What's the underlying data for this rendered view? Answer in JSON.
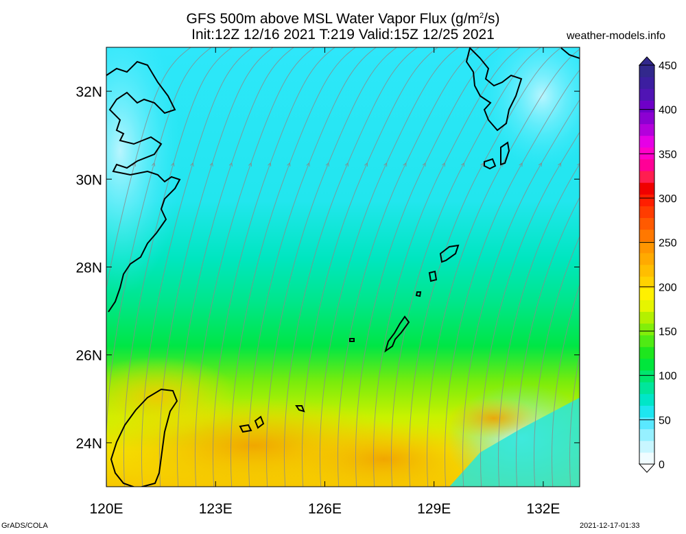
{
  "title_line1_main": "GFS 500m above MSL Water Vapor Flux (g/m",
  "title_line1_sup": "2",
  "title_line1_tail": "/s)",
  "title_line2": "Init:12Z 12/16 2021 T:219 Valid:15Z 12/25 2021",
  "site": "weather-models.info",
  "footer_left": "GrADS/COLA",
  "footer_right": "2021-12-17-01:33",
  "axes": {
    "lon_ticks": [
      {
        "value": 120,
        "label": "120E"
      },
      {
        "value": 123,
        "label": "123E"
      },
      {
        "value": 126,
        "label": "126E"
      },
      {
        "value": 129,
        "label": "129E"
      },
      {
        "value": 132,
        "label": "132E"
      }
    ],
    "lat_ticks": [
      {
        "value": 24,
        "label": "24N"
      },
      {
        "value": 26,
        "label": "26N"
      },
      {
        "value": 28,
        "label": "28N"
      },
      {
        "value": 30,
        "label": "30N"
      },
      {
        "value": 32,
        "label": "32N"
      }
    ],
    "lon_range": [
      120,
      133
    ],
    "lat_range": [
      23,
      33
    ]
  },
  "colorbar": {
    "labels": [
      {
        "value": 0,
        "label": "0"
      },
      {
        "value": 50,
        "label": "50"
      },
      {
        "value": 100,
        "label": "100"
      },
      {
        "value": 150,
        "label": "150"
      },
      {
        "value": 200,
        "label": "200"
      },
      {
        "value": 250,
        "label": "250"
      },
      {
        "value": 300,
        "label": "300"
      },
      {
        "value": 350,
        "label": "350"
      },
      {
        "value": 400,
        "label": "400"
      },
      {
        "value": 450,
        "label": "450"
      }
    ],
    "range": [
      0,
      450
    ],
    "colors": [
      "#f0fcff",
      "#c8f6ff",
      "#96f0ff",
      "#5ae8ff",
      "#1ee6f0",
      "#00e6c8",
      "#00e69b",
      "#00e66e",
      "#00e63c",
      "#1ee61e",
      "#50ea14",
      "#82ee0a",
      "#b4f000",
      "#e6f500",
      "#fff000",
      "#ffd200",
      "#ffbe00",
      "#ffaa00",
      "#ff9600",
      "#ff7800",
      "#ff5a00",
      "#ff3c00",
      "#ff1e00",
      "#f00000",
      "#ff1e50",
      "#ff0096",
      "#ff00c8",
      "#e600e6",
      "#b400dc",
      "#8c00d2",
      "#6e00c8",
      "#5014b4",
      "#3c1ea0",
      "#32288c"
    ]
  }
}
